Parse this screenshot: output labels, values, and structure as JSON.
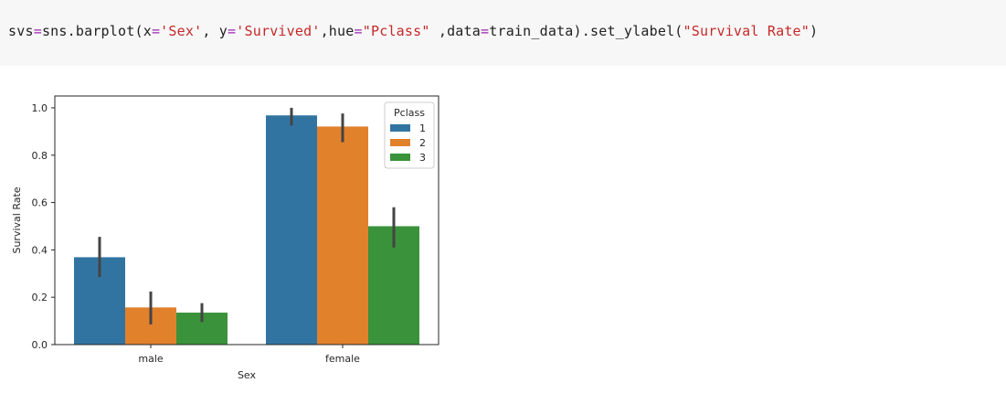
{
  "code": {
    "tokens": [
      {
        "t": "svs",
        "c": ""
      },
      {
        "t": "=",
        "c": "kw"
      },
      {
        "t": "sns.barplot(x",
        "c": ""
      },
      {
        "t": "=",
        "c": "kw"
      },
      {
        "t": "'Sex'",
        "c": "str"
      },
      {
        "t": ", y",
        "c": ""
      },
      {
        "t": "=",
        "c": "kw"
      },
      {
        "t": "'Survived'",
        "c": "str"
      },
      {
        "t": ",hue",
        "c": ""
      },
      {
        "t": "=",
        "c": "kw"
      },
      {
        "t": "\"Pclass\"",
        "c": "str"
      },
      {
        "t": " ,data",
        "c": ""
      },
      {
        "t": "=",
        "c": "kw"
      },
      {
        "t": "train_data).set_ylabel(",
        "c": ""
      },
      {
        "t": "\"Survival Rate\"",
        "c": "str"
      },
      {
        "t": ")",
        "c": ""
      }
    ]
  },
  "chart_data": {
    "type": "bar",
    "xlabel": "Sex",
    "ylabel": "Survival Rate",
    "categories": [
      "male",
      "female"
    ],
    "ylim": [
      0,
      1.05
    ],
    "yticks": [
      0.0,
      0.2,
      0.4,
      0.6,
      0.8,
      1.0
    ],
    "ytick_labels": [
      "0.0",
      "0.2",
      "0.4",
      "0.6",
      "0.8",
      "1.0"
    ],
    "legend": {
      "title": "Pclass",
      "placement": "top-right"
    },
    "grid": false,
    "series": [
      {
        "name": "1",
        "color": "#3274a1",
        "values": [
          0.369,
          0.968
        ],
        "ci": [
          [
            0.285,
            0.455
          ],
          [
            0.925,
            1.0
          ]
        ]
      },
      {
        "name": "2",
        "color": "#e1812c",
        "values": [
          0.157,
          0.921
        ],
        "ci": [
          [
            0.085,
            0.224
          ],
          [
            0.855,
            0.976
          ]
        ]
      },
      {
        "name": "3",
        "color": "#3a923a",
        "values": [
          0.135,
          0.5
        ],
        "ci": [
          [
            0.095,
            0.175
          ],
          [
            0.41,
            0.58
          ]
        ]
      }
    ],
    "errorbar_color": "#444444"
  }
}
